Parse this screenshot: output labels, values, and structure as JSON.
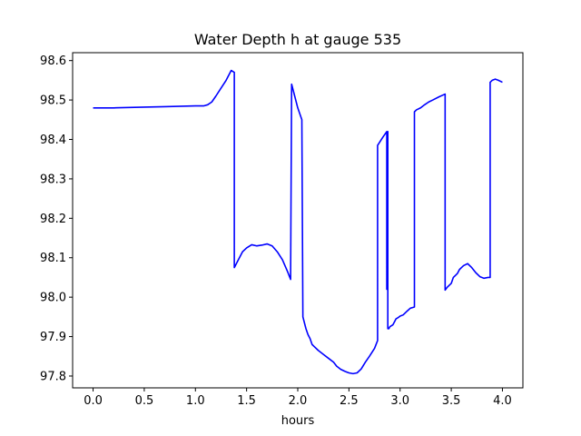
{
  "chart_data": {
    "type": "line",
    "title": "Water Depth h at gauge 535",
    "xlabel": "hours",
    "ylabel": "",
    "xlim": [
      -0.2,
      4.2
    ],
    "ylim": [
      97.77,
      98.62
    ],
    "x_ticks": [
      0.0,
      0.5,
      1.0,
      1.5,
      2.0,
      2.5,
      3.0,
      3.5,
      4.0
    ],
    "x_tick_labels": [
      "0.0",
      "0.5",
      "1.0",
      "1.5",
      "2.0",
      "2.5",
      "3.0",
      "3.5",
      "4.0"
    ],
    "y_ticks": [
      97.8,
      97.9,
      98.0,
      98.1,
      98.2,
      98.3,
      98.4,
      98.5,
      98.6
    ],
    "y_tick_labels": [
      "97.8",
      "97.9",
      "98.0",
      "98.1",
      "98.2",
      "98.3",
      "98.4",
      "98.5",
      "98.6"
    ],
    "grid": false,
    "series": [
      {
        "color": "#0000ff",
        "x": [
          0.0,
          0.2,
          0.5,
          0.7,
          1.0,
          1.08,
          1.12,
          1.16,
          1.2,
          1.25,
          1.3,
          1.35,
          1.38,
          1.38,
          1.42,
          1.46,
          1.5,
          1.55,
          1.6,
          1.65,
          1.7,
          1.75,
          1.8,
          1.85,
          1.9,
          1.93,
          1.94,
          1.97,
          2.0,
          2.04,
          2.05,
          2.08,
          2.1,
          2.12,
          2.14,
          2.16,
          2.2,
          2.25,
          2.3,
          2.35,
          2.38,
          2.42,
          2.46,
          2.5,
          2.54,
          2.58,
          2.62,
          2.66,
          2.7,
          2.75,
          2.78,
          2.78,
          2.83,
          2.87,
          2.87,
          2.88,
          2.88,
          2.89,
          2.9,
          2.93,
          2.95,
          2.96,
          2.98,
          3.0,
          3.03,
          3.07,
          3.1,
          3.14,
          3.14,
          3.16,
          3.2,
          3.24,
          3.28,
          3.32,
          3.38,
          3.44,
          3.44,
          3.46,
          3.5,
          3.52,
          3.54,
          3.56,
          3.58,
          3.6,
          3.62,
          3.66,
          3.7,
          3.74,
          3.78,
          3.82,
          3.86,
          3.88,
          3.88,
          3.9,
          3.93,
          3.96,
          4.0
        ],
        "y": [
          98.48,
          98.48,
          98.482,
          98.483,
          98.485,
          98.485,
          98.488,
          98.495,
          98.51,
          98.53,
          98.55,
          98.575,
          98.57,
          98.075,
          98.095,
          98.115,
          98.125,
          98.133,
          98.13,
          98.132,
          98.135,
          98.13,
          98.115,
          98.095,
          98.065,
          98.045,
          98.54,
          98.51,
          98.48,
          98.45,
          97.95,
          97.92,
          97.905,
          97.895,
          97.88,
          97.875,
          97.865,
          97.855,
          97.845,
          97.835,
          97.825,
          97.817,
          97.812,
          97.808,
          97.806,
          97.808,
          97.818,
          97.835,
          97.85,
          97.87,
          97.89,
          98.385,
          98.405,
          98.42,
          98.02,
          98.42,
          97.92,
          97.92,
          97.925,
          97.93,
          97.94,
          97.945,
          97.948,
          97.952,
          97.955,
          97.965,
          97.972,
          97.975,
          98.47,
          98.475,
          98.48,
          98.488,
          98.495,
          98.5,
          98.508,
          98.515,
          98.018,
          98.025,
          98.035,
          98.05,
          98.055,
          98.06,
          98.07,
          98.075,
          98.08,
          98.085,
          98.075,
          98.062,
          98.052,
          98.048,
          98.05,
          98.05,
          98.545,
          98.55,
          98.553,
          98.55,
          98.545
        ]
      }
    ]
  }
}
